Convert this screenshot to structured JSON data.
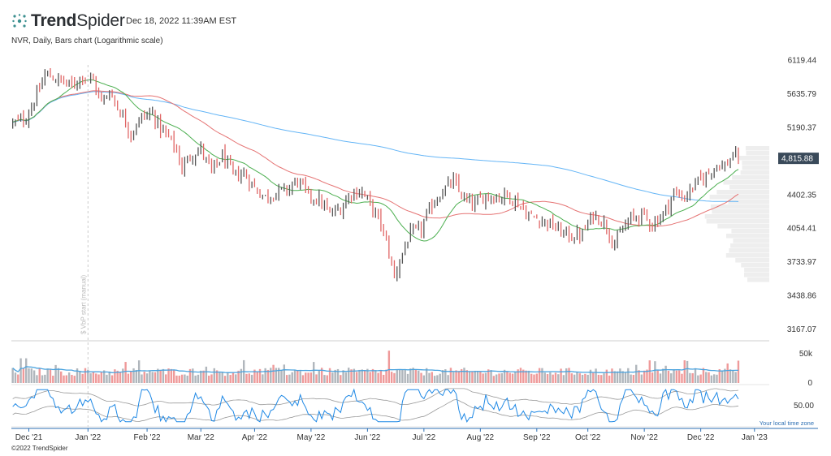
{
  "header": {
    "logo_text_bold": "Trend",
    "logo_text_light": "Spider",
    "timestamp": "Dec 18, 2022 11:39AM EST",
    "subtitle": "NVR, Daily, Bars chart (Logarithmic scale)"
  },
  "footer": {
    "copyright": "©2022 TrendSpider"
  },
  "colors": {
    "up_bar": "#555555",
    "down_bar": "#e06666",
    "sma_short": "#4caf50",
    "sma_mid": "#e57373",
    "sma_long": "#64b5f6",
    "volume_up": "#b0b6bc",
    "volume_down": "#ef9a9a",
    "volume_avg": "#4aa3df",
    "oscillator": "#1e88e5",
    "band": "#999999",
    "last_price_bg": "#3a4a5a"
  },
  "chart_data": {
    "type": "bar",
    "title": "NVR, Daily, Bars chart (Logarithmic scale)",
    "price_axis": {
      "scale": "log",
      "ylim": [
        3080,
        6300
      ],
      "tick_labels": [
        "6119.44",
        "5635.79",
        "5190.37",
        "4402.35",
        "4054.41",
        "3733.97",
        "3438.86",
        "3167.07"
      ],
      "tick_values": [
        6119.44,
        5635.79,
        5190.37,
        4402.35,
        4054.41,
        3733.97,
        3438.86,
        3167.07
      ],
      "last_price_label": "4,815.88",
      "last_price": 4815.88
    },
    "time_axis": {
      "labels": [
        "Dec '21",
        "Jan '22",
        "Feb '22",
        "Mar '22",
        "Apr '22",
        "May '22",
        "Jun '22",
        "Jul '22",
        "Aug '22",
        "Sep '22",
        "Oct '22",
        "Nov '22",
        "Dec '22",
        "Jan '23"
      ],
      "label_day_index": [
        6,
        28,
        50,
        70,
        90,
        111,
        132,
        153,
        174,
        195,
        214,
        235,
        256,
        276
      ],
      "timezone_label": "Your local time zone",
      "total_days": 282
    },
    "vwap_annotation": "$ VbP start (manual)",
    "vwap_day_index": 28,
    "anchors": [
      [
        0,
        5240
      ],
      [
        5,
        5320
      ],
      [
        10,
        5700
      ],
      [
        12,
        5920
      ],
      [
        18,
        5820
      ],
      [
        22,
        5750
      ],
      [
        26,
        5900
      ],
      [
        30,
        5820
      ],
      [
        33,
        5520
      ],
      [
        36,
        5680
      ],
      [
        40,
        5400
      ],
      [
        44,
        5120
      ],
      [
        48,
        5330
      ],
      [
        52,
        5380
      ],
      [
        55,
        5180
      ],
      [
        60,
        4980
      ],
      [
        63,
        4700
      ],
      [
        66,
        4850
      ],
      [
        70,
        4930
      ],
      [
        74,
        4650
      ],
      [
        78,
        4850
      ],
      [
        82,
        4620
      ],
      [
        86,
        4640
      ],
      [
        90,
        4480
      ],
      [
        94,
        4380
      ],
      [
        98,
        4430
      ],
      [
        102,
        4460
      ],
      [
        106,
        4560
      ],
      [
        110,
        4400
      ],
      [
        114,
        4350
      ],
      [
        118,
        4200
      ],
      [
        122,
        4260
      ],
      [
        126,
        4430
      ],
      [
        130,
        4440
      ],
      [
        134,
        4250
      ],
      [
        137,
        4100
      ],
      [
        140,
        3820
      ],
      [
        142,
        3600
      ],
      [
        145,
        3820
      ],
      [
        148,
        4000
      ],
      [
        152,
        4050
      ],
      [
        156,
        4300
      ],
      [
        160,
        4450
      ],
      [
        164,
        4550
      ],
      [
        168,
        4350
      ],
      [
        172,
        4300
      ],
      [
        176,
        4400
      ],
      [
        180,
        4380
      ],
      [
        184,
        4400
      ],
      [
        188,
        4320
      ],
      [
        192,
        4180
      ],
      [
        196,
        4150
      ],
      [
        200,
        4100
      ],
      [
        204,
        4020
      ],
      [
        208,
        3980
      ],
      [
        212,
        4000
      ],
      [
        216,
        4200
      ],
      [
        220,
        4120
      ],
      [
        224,
        3900
      ],
      [
        227,
        4050
      ],
      [
        230,
        4150
      ],
      [
        234,
        4200
      ],
      [
        238,
        4100
      ],
      [
        242,
        4200
      ],
      [
        246,
        4420
      ],
      [
        250,
        4380
      ],
      [
        254,
        4520
      ],
      [
        258,
        4620
      ],
      [
        262,
        4750
      ],
      [
        265,
        4720
      ],
      [
        268,
        4850
      ],
      [
        270,
        4816
      ]
    ],
    "volume_axis": {
      "tick_labels": [
        "50k",
        "0"
      ],
      "tick_values": [
        50000,
        0
      ],
      "ylim": [
        0,
        58000
      ]
    },
    "oscillator_axis": {
      "tick_labels": [
        "50.00"
      ],
      "tick_values": [
        50
      ],
      "ylim": [
        0,
        100
      ]
    }
  }
}
